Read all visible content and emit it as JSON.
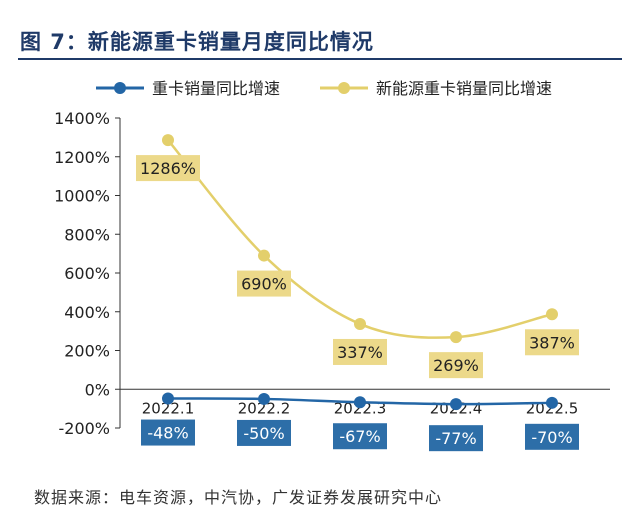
{
  "title": "图 7：新能源重卡销量月度同比情况",
  "source": "数据来源：电车资源，中汽协，广发证券发展研究中心",
  "colors": {
    "title": "#1f3a68",
    "series_a": "#2366a6",
    "series_b": "#e3cf6b",
    "label_b_bg": "#ecd98a",
    "label_b_text": "#222222",
    "label_a_bg": "#2d6ea8",
    "label_a_text": "#ffffff",
    "axis": "#333333"
  },
  "chart_data": {
    "type": "line",
    "categories": [
      "2022.1",
      "2022.2",
      "2022.3",
      "2022.4",
      "2022.5"
    ],
    "ylim": [
      -200,
      1400
    ],
    "yticks": [
      -200,
      0,
      200,
      400,
      600,
      800,
      1000,
      1200,
      1400
    ],
    "ytick_suffix": "%",
    "grid": false,
    "legend_position": "top",
    "series": [
      {
        "name": "重卡销量同比增速",
        "values": [
          -48,
          -50,
          -67,
          -77,
          -70
        ],
        "labels": [
          "-48%",
          "-50%",
          "-67%",
          "-77%",
          "-70%"
        ],
        "label_position": "below",
        "smooth": true
      },
      {
        "name": "新能源重卡销量同比增速",
        "values": [
          1286,
          690,
          337,
          269,
          387
        ],
        "labels": [
          "1286%",
          "690%",
          "337%",
          "269%",
          "387%"
        ],
        "label_position": "below",
        "smooth": true
      }
    ]
  }
}
